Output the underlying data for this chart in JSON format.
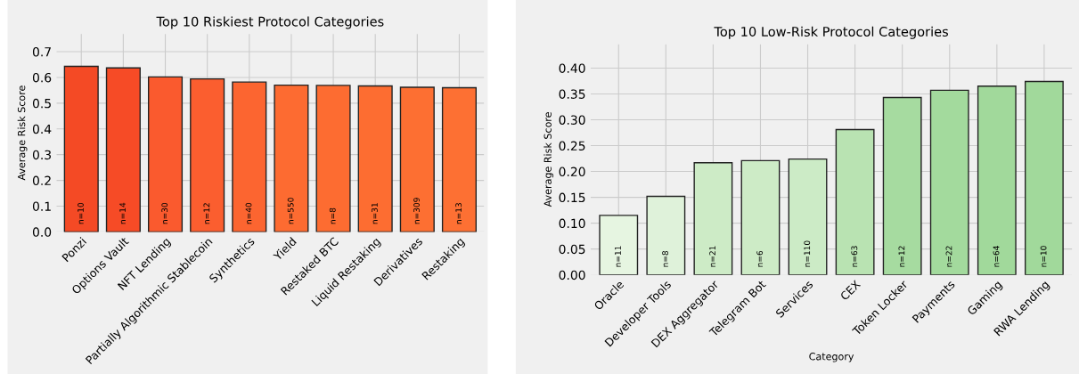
{
  "chart_data": [
    {
      "type": "bar",
      "title": "Top 10 Riskiest Protocol Categories",
      "ylabel": "Average Risk Score",
      "categories": [
        "Ponzi",
        "Options Vault",
        "NFT Lending",
        "Partially Algorithmic Stablecoin",
        "Synthetics",
        "Yield",
        "Restaked BTC",
        "Liquid Restaking",
        "Derivatives",
        "Restaking"
      ],
      "values": [
        0.643,
        0.637,
        0.602,
        0.594,
        0.582,
        0.57,
        0.569,
        0.567,
        0.562,
        0.56
      ],
      "colors": [
        "#f44a25",
        "#f64b26",
        "#fa5a2e",
        "#fb5e2f",
        "#fc6530",
        "#fd6b31",
        "#fd6c31",
        "#fd6d31",
        "#fd6f32",
        "#fd7033"
      ],
      "ylim": [
        0,
        0.77
      ],
      "yticks": [
        {
          "value": 0,
          "label": "0.0"
        },
        0.1,
        0.2,
        0.3,
        0.4,
        0.5,
        0.6,
        0.7
      ],
      "grid": true,
      "annotations": [
        {
          "text": "n=10",
          "x": "Ponzi",
          "y": 0
        },
        {
          "text": "n=14",
          "x": "Options Vault",
          "y": 0
        },
        {
          "text": "n=30",
          "x": "NFT Lending",
          "y": 0
        },
        {
          "text": "n=12",
          "x": "Partially Algorithmic Stablecoin",
          "y": 0
        },
        {
          "text": "n=40",
          "x": "Synthetics",
          "y": 0
        },
        {
          "text": "n=550",
          "x": "Yield",
          "y": 0
        },
        {
          "text": "n=8",
          "x": "Restaked BTC",
          "y": 0
        },
        {
          "text": "n=31",
          "x": "Liquid Restaking",
          "y": 0
        },
        {
          "text": "n=309",
          "x": "Derivatives",
          "y": 0
        },
        {
          "text": "n=13",
          "x": "Restaking",
          "y": 0
        }
      ]
    },
    {
      "type": "bar",
      "title": "Top 10 Low-Risk Protocol Categories",
      "ylabel": "Average Risk Score",
      "xlabel": "Category",
      "categories": [
        "Oracle",
        "Developer Tools",
        "DEX Aggregator",
        "Telegram Bot",
        "Services",
        "CEX",
        "Token Locker",
        "Payments",
        "Gaming",
        "RWA Lending"
      ],
      "values": [
        0.115,
        0.152,
        0.217,
        0.221,
        0.224,
        0.281,
        0.343,
        0.357,
        0.365,
        0.374
      ],
      "colors": [
        "#e6f5e1",
        "#dff2da",
        "#cdebc6",
        "#cdebc6",
        "#ccebc6",
        "#b9e3b2",
        "#a6dba0",
        "#a3da9d",
        "#a1d99b",
        "#a1d99b"
      ],
      "ylim": [
        0,
        0.447
      ],
      "yticks": [
        {
          "value": 0,
          "label": "0.00"
        },
        0.05,
        {
          "value": 0.1,
          "label": "0.10"
        },
        0.15,
        {
          "value": 0.2,
          "label": "0.20"
        },
        0.25,
        {
          "value": 0.3,
          "label": "0.30"
        },
        0.35,
        {
          "value": 0.4,
          "label": "0.40"
        }
      ],
      "grid": true,
      "annotations": [
        {
          "text": "n=11",
          "x": "Oracle",
          "y": 0
        },
        {
          "text": "n=8",
          "x": "Developer Tools",
          "y": 0
        },
        {
          "text": "n=21",
          "x": "DEX Aggregator",
          "y": 0
        },
        {
          "text": "n=6",
          "x": "Telegram Bot",
          "y": 0
        },
        {
          "text": "n=110",
          "x": "Services",
          "y": 0
        },
        {
          "text": "n=63",
          "x": "CEX",
          "y": 0
        },
        {
          "text": "n=12",
          "x": "Token Locker",
          "y": 0
        },
        {
          "text": "n=22",
          "x": "Payments",
          "y": 0
        },
        {
          "text": "n=64",
          "x": "Gaming",
          "y": 0
        },
        {
          "text": "n=10",
          "x": "RWA Lending",
          "y": 0
        }
      ]
    }
  ]
}
